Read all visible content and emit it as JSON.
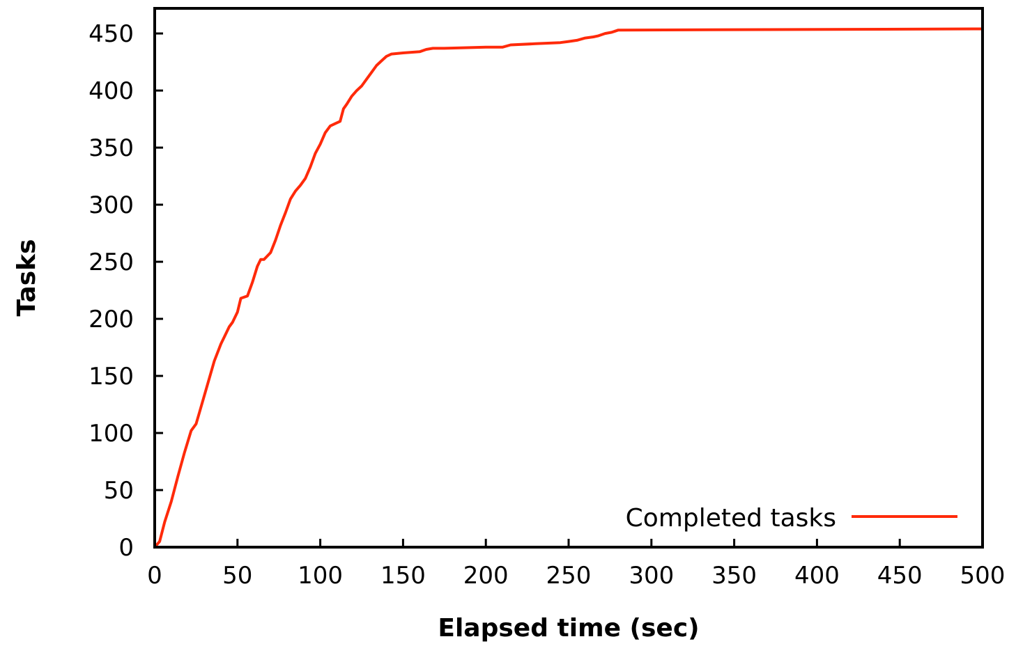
{
  "chart_data": {
    "type": "line",
    "title": "",
    "xlabel": "Elapsed time (sec)",
    "ylabel": "Tasks",
    "xlim": [
      0,
      500
    ],
    "ylim": [
      0,
      450
    ],
    "x_ticks": [
      0,
      50,
      100,
      150,
      200,
      250,
      300,
      350,
      400,
      450,
      500
    ],
    "y_ticks": [
      0,
      50,
      100,
      150,
      200,
      250,
      300,
      350,
      400,
      450
    ],
    "grid": false,
    "legend_position": "bottom-right",
    "colors": {
      "series": "#ff2a0a",
      "axis": "#000000"
    },
    "series": [
      {
        "name": "Completed tasks",
        "x": [
          0,
          3,
          6,
          10,
          14,
          18,
          22,
          25,
          27,
          30,
          33,
          36,
          40,
          42,
          45,
          47,
          50,
          52,
          56,
          59,
          62,
          64,
          66,
          70,
          73,
          76,
          79,
          82,
          85,
          88,
          91,
          94,
          97,
          100,
          103,
          106,
          109,
          112,
          114,
          116,
          119,
          122,
          125,
          128,
          131,
          134,
          137,
          140,
          143,
          150,
          160,
          164,
          168,
          175,
          200,
          210,
          215,
          230,
          245,
          250,
          255,
          260,
          265,
          268,
          272,
          276,
          278,
          280,
          500
        ],
        "y": [
          0,
          5,
          22,
          40,
          62,
          83,
          102,
          108,
          118,
          133,
          148,
          163,
          178,
          184,
          193,
          197,
          206,
          218,
          220,
          232,
          246,
          252,
          252,
          258,
          269,
          282,
          293,
          305,
          312,
          317,
          323,
          333,
          345,
          353,
          363,
          369,
          371,
          373,
          384,
          388,
          395,
          400,
          404,
          410,
          416,
          422,
          426,
          430,
          432,
          433,
          434,
          436,
          437,
          437,
          438,
          438,
          440,
          441,
          442,
          443,
          444,
          446,
          447,
          448,
          450,
          451,
          452,
          453,
          454
        ]
      }
    ]
  }
}
